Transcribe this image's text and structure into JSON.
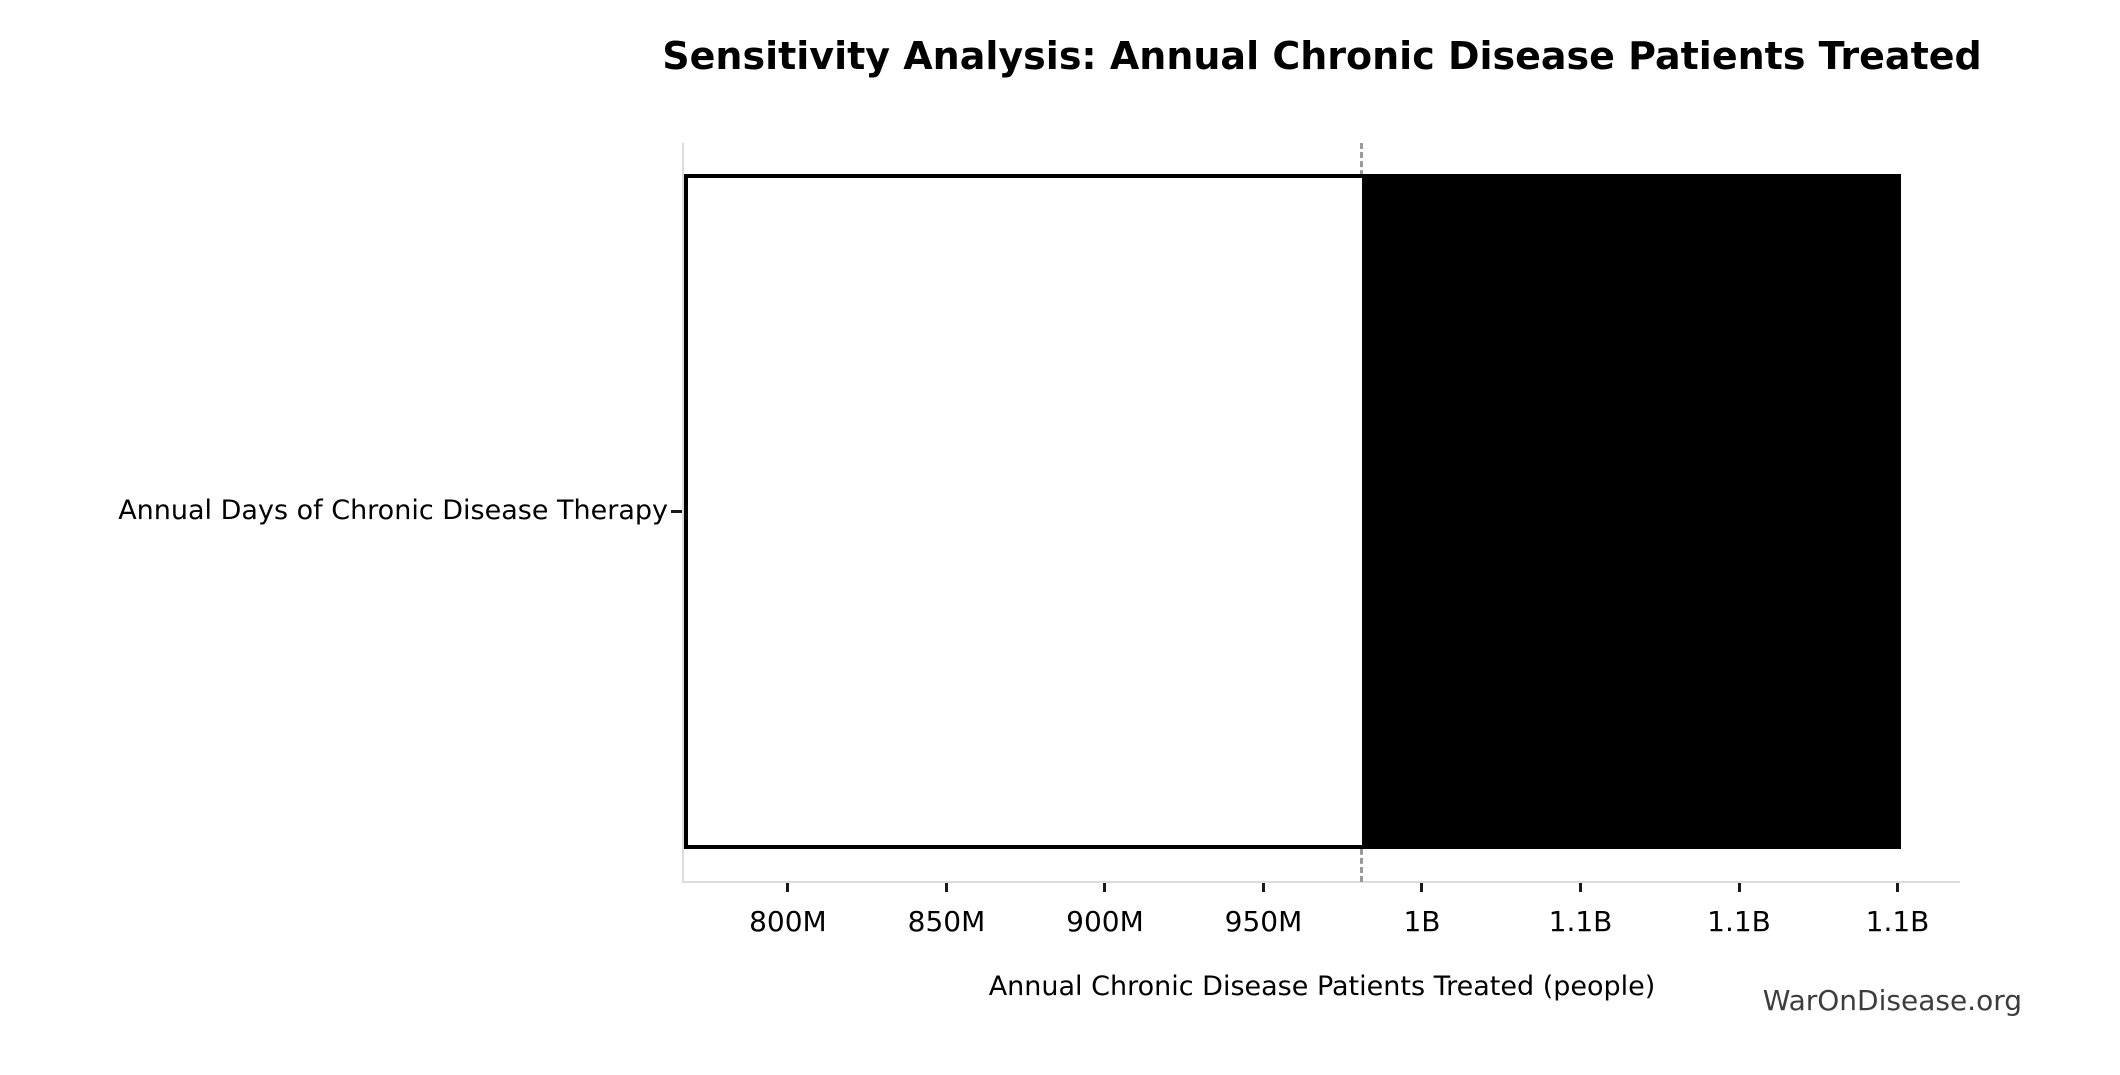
{
  "chart": {
    "title": "Sensitivity Analysis: Annual Chronic Disease Patients Treated",
    "xlabel": "Annual Chronic Disease Patients Treated (people)",
    "category_label": "Annual Days of Chronic Disease Therapy"
  },
  "watermark": {
    "text": "WarOnDisease.org"
  },
  "chart_data": {
    "type": "bar",
    "orientation": "horizontal",
    "subtype": "tornado-sensitivity",
    "title": "Sensitivity Analysis: Annual Chronic Disease Patients Treated",
    "xlabel": "Annual Chronic Disease Patients Treated (people)",
    "ylabel": "",
    "categories": [
      "Annual Days of Chronic Disease Therapy"
    ],
    "series": [
      {
        "name": "low-side-segment",
        "fill": "#ffffff",
        "edge": "#000000",
        "range_people": [
          767000000,
          981000000
        ]
      },
      {
        "name": "high-side-segment",
        "fill": "#000000",
        "edge": "#000000",
        "range_people": [
          981000000,
          1151000000
        ]
      }
    ],
    "baseline_value": 981000000,
    "baseline_line": {
      "style": "dashed",
      "color": "#999999",
      "orientation": "vertical"
    },
    "xlim": [
      766900000,
      1169700000
    ],
    "x_ticks": [
      {
        "value": 800000000,
        "label": "800M"
      },
      {
        "value": 850000000,
        "label": "850M"
      },
      {
        "value": 900000000,
        "label": "900M"
      },
      {
        "value": 950000000,
        "label": "950M"
      },
      {
        "value": 1000000000,
        "label": "1B"
      },
      {
        "value": 1050000000,
        "label": "1.1B"
      },
      {
        "value": 1100000000,
        "label": "1.1B"
      },
      {
        "value": 1150000000,
        "label": "1.1B"
      }
    ],
    "grid": false,
    "legend": false,
    "values_are_estimates_from_pixels": true
  },
  "colors": {
    "background": "#ffffff",
    "bar_fill_low": "#ffffff",
    "bar_fill_high": "#000000",
    "bar_edge": "#000000",
    "baseline_dash": "#999999",
    "spine": "#dcdcdc",
    "tick_mark": "#1a1a1a",
    "text": "#000000",
    "watermark_text": "#3d3d3d"
  }
}
